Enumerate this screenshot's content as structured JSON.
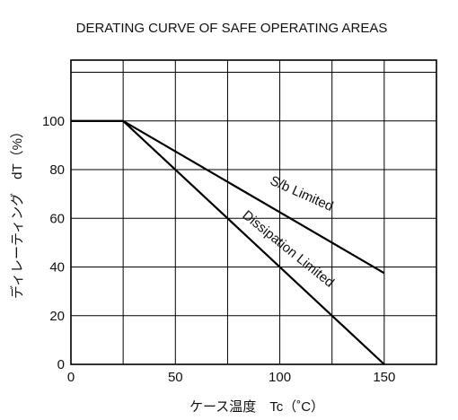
{
  "chart_data": {
    "type": "line",
    "title": "DERATING CURVE OF SAFE OPERATING AREAS",
    "xlabel": "ケース温度　Tc（˚C）",
    "ylabel": "ディレーティング　dT（%）",
    "xlim": [
      0,
      175
    ],
    "ylim": [
      0,
      125
    ],
    "x_ticks": [
      0,
      50,
      100,
      150
    ],
    "y_ticks": [
      0,
      20,
      40,
      60,
      80,
      100
    ],
    "x_grid": [
      0,
      25,
      50,
      75,
      100,
      125,
      150,
      175
    ],
    "y_grid": [
      0,
      20,
      40,
      60,
      80,
      100,
      120
    ],
    "grid": true,
    "series": [
      {
        "name": "S/b Limited",
        "x": [
          0,
          25,
          150
        ],
        "y": [
          100,
          100,
          37.5
        ]
      },
      {
        "name": "Dissipation Limited",
        "x": [
          0,
          25,
          150
        ],
        "y": [
          100,
          100,
          0
        ]
      }
    ],
    "annotations": [
      "S/b Limited",
      "Dissipation Limited"
    ]
  }
}
